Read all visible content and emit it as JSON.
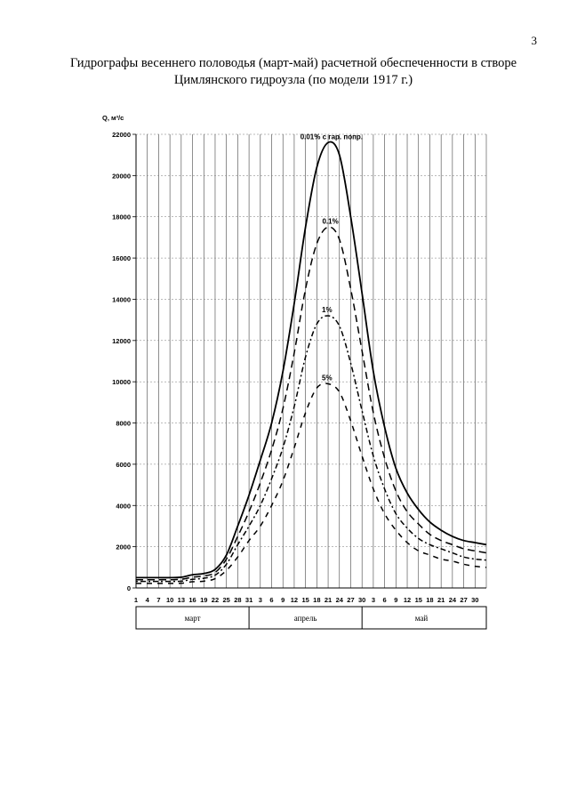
{
  "page_number": "3",
  "title_line1": "Гидрографы весеннего половодья (март-май) расчетной обеспеченности в створе",
  "title_line2": "Цимлянского гидроузла (по модели 1917 г.)",
  "chart_data": {
    "type": "line",
    "ylabel": "Q, м³/с",
    "ylim": [
      0,
      22000
    ],
    "ytick_step": 2000,
    "grid": true,
    "x_ticks": [
      "1",
      "4",
      "7",
      "10",
      "13",
      "16",
      "19",
      "22",
      "25",
      "28",
      "31",
      "3",
      "6",
      "9",
      "12",
      "15",
      "18",
      "21",
      "24",
      "27",
      "30",
      "3",
      "6",
      "9",
      "12",
      "15",
      "18",
      "21",
      "24",
      "27",
      "30"
    ],
    "months": [
      {
        "label": "март",
        "from": 0,
        "to": 10
      },
      {
        "label": "апрель",
        "from": 10,
        "to": 20
      },
      {
        "label": "май",
        "from": 20,
        "to": 30.5
      }
    ],
    "x": [
      0,
      1,
      2,
      3,
      4,
      5,
      6,
      7,
      8,
      9,
      10,
      11,
      12,
      13,
      14,
      15,
      16,
      17,
      18,
      19,
      20,
      21,
      22,
      23,
      24,
      25,
      26,
      27,
      28,
      29,
      30,
      31
    ],
    "series": [
      {
        "name": "0.01% с гар. попр.",
        "dash": "",
        "label_x": 17.3,
        "values": [
          500,
          500,
          500,
          500,
          520,
          640,
          700,
          900,
          1600,
          3000,
          4500,
          6200,
          8000,
          10500,
          13800,
          17500,
          20400,
          21600,
          21000,
          18000,
          14300,
          10500,
          7800,
          5800,
          4600,
          3800,
          3200,
          2800,
          2500,
          2300,
          2200,
          2100
        ]
      },
      {
        "name": "0.1%",
        "dash": "8,5",
        "label_x": 17.2,
        "values": [
          400,
          400,
          400,
          400,
          420,
          520,
          580,
          750,
          1400,
          2500,
          3700,
          5100,
          6700,
          8700,
          11400,
          14500,
          16700,
          17500,
          16900,
          14500,
          11500,
          8500,
          6300,
          4700,
          3700,
          3100,
          2600,
          2300,
          2100,
          1900,
          1800,
          1700
        ]
      },
      {
        "name": "1%",
        "dash": "2,3,6,3",
        "label_x": 16.9,
        "values": [
          320,
          320,
          320,
          320,
          330,
          420,
          470,
          620,
          1150,
          2100,
          3000,
          4000,
          5300,
          6800,
          8800,
          11200,
          12800,
          13200,
          12700,
          10900,
          8600,
          6400,
          4800,
          3600,
          2900,
          2400,
          2100,
          1900,
          1700,
          1500,
          1400,
          1350
        ]
      },
      {
        "name": "5%",
        "dash": "6,6",
        "label_x": 16.9,
        "values": [
          220,
          220,
          220,
          220,
          230,
          300,
          330,
          450,
          850,
          1500,
          2300,
          3000,
          4000,
          5200,
          6800,
          8500,
          9700,
          9900,
          9500,
          8100,
          6400,
          4800,
          3600,
          2800,
          2200,
          1800,
          1600,
          1400,
          1300,
          1150,
          1050,
          1000
        ]
      }
    ]
  }
}
